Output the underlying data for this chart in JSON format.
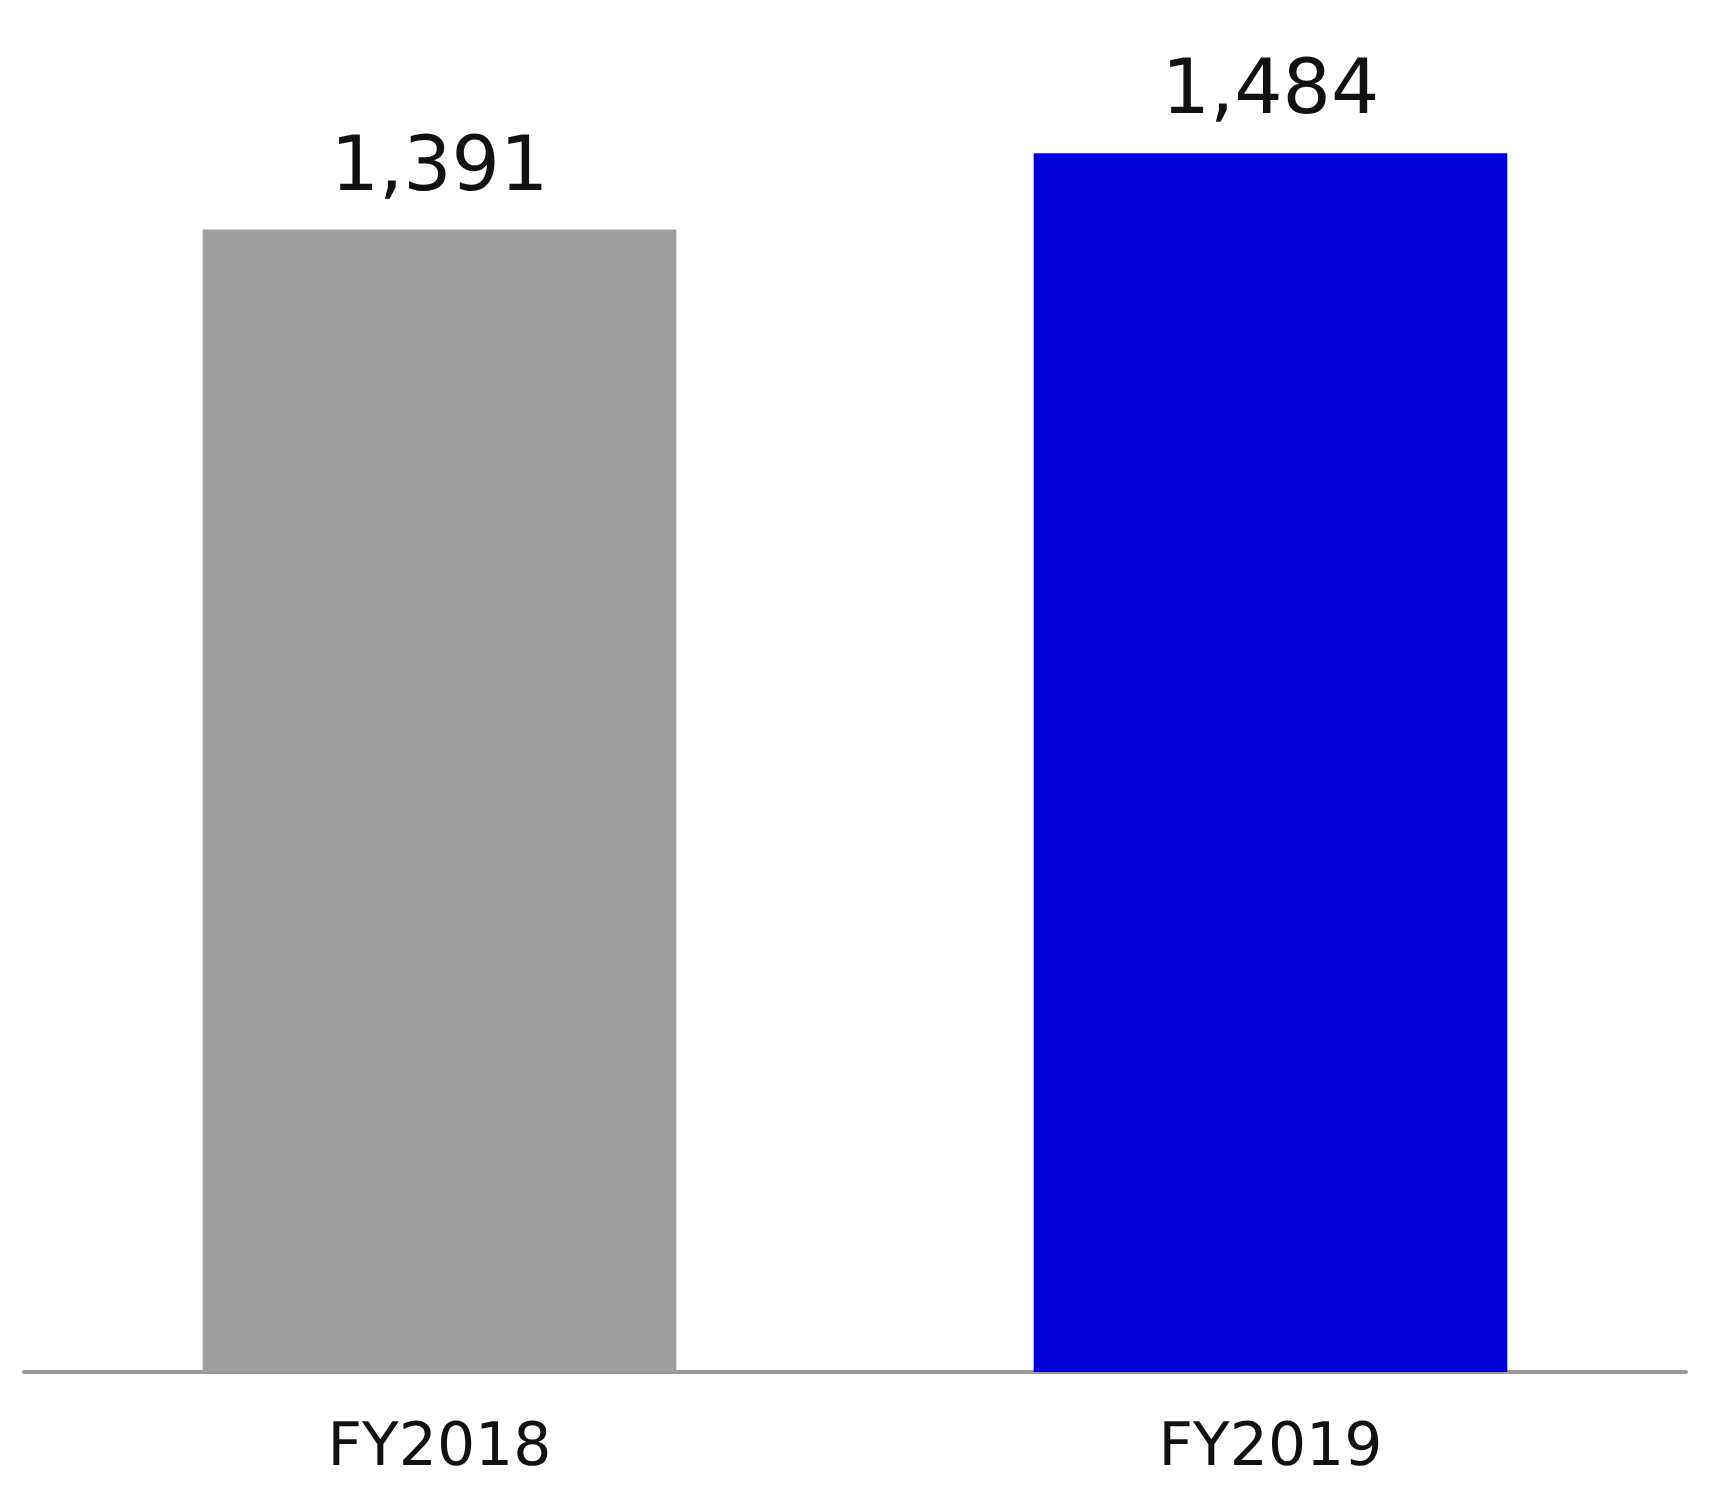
{
  "chart_data": {
    "type": "bar",
    "categories": [
      "FY2018",
      "FY2019"
    ],
    "values": [
      1391,
      1484
    ],
    "value_labels": [
      "1,391",
      "1,484"
    ],
    "colors": [
      "#9e9e9e",
      "#0000d8"
    ],
    "tick_labels": "x"
  }
}
